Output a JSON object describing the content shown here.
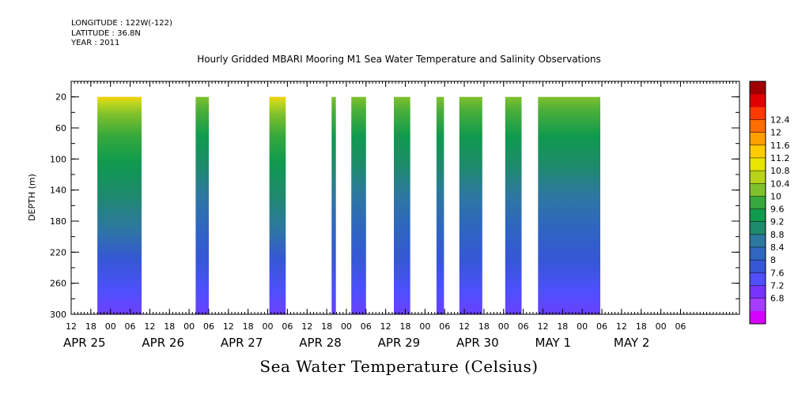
{
  "header": {
    "longitude": "LONGITUDE : 122W(-122)",
    "latitude": "LATITUDE : 36.8N",
    "year": "YEAR : 2011"
  },
  "chart_data": {
    "type": "heatmap",
    "title": "Hourly Gridded MBARI Mooring M1 Sea Water Temperature and Salinity Observations",
    "ylabel": "DEPTH (m)",
    "xlabel_caption": "Sea Water Temperature (Celsius)",
    "x_hour_range": [
      0,
      204
    ],
    "ylim": [
      300,
      0
    ],
    "y_ticks": [
      20,
      60,
      100,
      140,
      180,
      220,
      260,
      300
    ],
    "x_hour_ticks": [
      {
        "h": 0,
        "label": "12"
      },
      {
        "h": 6,
        "label": "18"
      },
      {
        "h": 12,
        "label": "00"
      },
      {
        "h": 18,
        "label": "06"
      },
      {
        "h": 24,
        "label": "12"
      },
      {
        "h": 30,
        "label": "18"
      },
      {
        "h": 36,
        "label": "00"
      },
      {
        "h": 42,
        "label": "06"
      },
      {
        "h": 48,
        "label": "12"
      },
      {
        "h": 54,
        "label": "18"
      },
      {
        "h": 60,
        "label": "00"
      },
      {
        "h": 66,
        "label": "06"
      },
      {
        "h": 72,
        "label": "12"
      },
      {
        "h": 78,
        "label": "18"
      },
      {
        "h": 84,
        "label": "00"
      },
      {
        "h": 90,
        "label": "06"
      },
      {
        "h": 96,
        "label": "12"
      },
      {
        "h": 102,
        "label": "18"
      },
      {
        "h": 108,
        "label": "00"
      },
      {
        "h": 114,
        "label": "06"
      },
      {
        "h": 120,
        "label": "12"
      },
      {
        "h": 126,
        "label": "18"
      },
      {
        "h": 132,
        "label": "00"
      },
      {
        "h": 138,
        "label": "06"
      },
      {
        "h": 144,
        "label": "12"
      },
      {
        "h": 150,
        "label": "18"
      },
      {
        "h": 156,
        "label": "00"
      },
      {
        "h": 162,
        "label": "06"
      },
      {
        "h": 168,
        "label": "12"
      },
      {
        "h": 174,
        "label": "18"
      },
      {
        "h": 180,
        "label": "00"
      },
      {
        "h": 186,
        "label": "06"
      }
    ],
    "x_date_labels": [
      {
        "h": 0,
        "label": "APR 25"
      },
      {
        "h": 24,
        "label": "APR 26"
      },
      {
        "h": 48,
        "label": "APR 27"
      },
      {
        "h": 72,
        "label": "APR 28"
      },
      {
        "h": 96,
        "label": "APR 29"
      },
      {
        "h": 120,
        "label": "APR 30"
      },
      {
        "h": 144,
        "label": "MAY  1"
      },
      {
        "h": 168,
        "label": "MAY  2"
      }
    ],
    "data_segments": [
      {
        "start_h": 8,
        "end_h": 21.5,
        "surface_warm": true
      },
      {
        "start_h": 38,
        "end_h": 42,
        "surface_warm": false
      },
      {
        "start_h": 60.5,
        "end_h": 65.5,
        "surface_warm": true
      },
      {
        "start_h": 79.5,
        "end_h": 80.8,
        "surface_warm": false
      },
      {
        "start_h": 85.5,
        "end_h": 90,
        "surface_warm": false
      },
      {
        "start_h": 98.5,
        "end_h": 103.5,
        "surface_warm": false
      },
      {
        "start_h": 111.5,
        "end_h": 113.8,
        "surface_warm": false
      },
      {
        "start_h": 118.5,
        "end_h": 125.5,
        "surface_warm": false
      },
      {
        "start_h": 132.5,
        "end_h": 137.5,
        "surface_warm": false
      },
      {
        "start_h": 142.5,
        "end_h": 161.5,
        "surface_warm": false
      }
    ],
    "colorbar": {
      "levels": [
        6.8,
        7.2,
        7.6,
        8,
        8.4,
        8.8,
        9.2,
        9.6,
        10,
        10.4,
        10.8,
        11.2,
        11.6,
        12,
        12.4
      ],
      "colors": [
        "#d500ff",
        "#a53cff",
        "#7833ff",
        "#4f4fff",
        "#3657d6",
        "#2e66c0",
        "#2d78a0",
        "#1e8a6c",
        "#109a4e",
        "#36a83c",
        "#7fc12c",
        "#b8d21a",
        "#e6e600",
        "#ffcc00",
        "#ff9f00",
        "#ff6c00",
        "#ff3a00",
        "#e00000",
        "#a00000"
      ],
      "labels": [
        "6.8",
        "7.2",
        "7.6",
        "8",
        "8.4",
        "8.8",
        "9.2",
        "9.6",
        "10",
        "10.4",
        "10.8",
        "11.2",
        "11.6",
        "12",
        "12.4"
      ]
    }
  }
}
